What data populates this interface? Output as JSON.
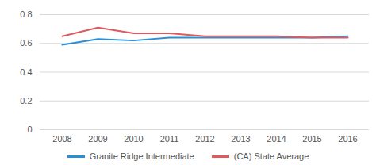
{
  "chart_data": {
    "type": "line",
    "categories": [
      "2008",
      "2009",
      "2010",
      "2011",
      "2012",
      "2013",
      "2014",
      "2015",
      "2016"
    ],
    "series": [
      {
        "name": "Granite Ridge Intermediate",
        "color": "#2b8fd6",
        "values": [
          0.59,
          0.63,
          0.62,
          0.64,
          0.64,
          0.64,
          0.64,
          0.64,
          0.65
        ]
      },
      {
        "name": "(CA) State Average",
        "color": "#dd5a5f",
        "values": [
          0.65,
          0.71,
          0.67,
          0.67,
          0.65,
          0.65,
          0.65,
          0.64,
          0.64
        ]
      }
    ],
    "ylim": [
      0,
      0.8
    ],
    "yticks": [
      0,
      0.2,
      0.4,
      0.6,
      0.8
    ],
    "grid": true,
    "legend": "bottom"
  }
}
